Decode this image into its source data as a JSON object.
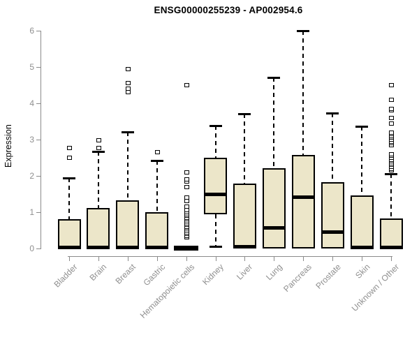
{
  "chart_data": {
    "type": "boxplot",
    "title": "ENSG00000255239 - AP002954.6",
    "ylabel": "Expression",
    "xlabel": "",
    "ylim": [
      0,
      6
    ],
    "y_ticks": [
      0,
      1,
      2,
      3,
      4,
      5,
      6
    ],
    "grid": false,
    "legend": false,
    "categories": [
      "Bladder",
      "Brain",
      "Breast",
      "Gastric",
      "Hematopoietic cells",
      "Kidney",
      "Liver",
      "Lung",
      "Pancreas",
      "Prostate",
      "Skin",
      "Unknown / Other"
    ],
    "series": [
      {
        "category": "Bladder",
        "whisker_low": 0,
        "q1": 0,
        "median": 0.03,
        "q3": 0.8,
        "whisker_high": 1.95,
        "outliers": [
          2.5,
          2.77
        ]
      },
      {
        "category": "Brain",
        "whisker_low": 0,
        "q1": 0,
        "median": 0.03,
        "q3": 1.12,
        "whisker_high": 2.67,
        "outliers": [
          2.77,
          2.98
        ]
      },
      {
        "category": "Breast",
        "whisker_low": 0,
        "q1": 0,
        "median": 0.03,
        "q3": 1.33,
        "whisker_high": 3.22,
        "outliers": [
          4.3,
          4.4,
          4.55,
          4.95
        ]
      },
      {
        "category": "Gastric",
        "whisker_low": 0,
        "q1": 0,
        "median": 0.03,
        "q3": 1.0,
        "whisker_high": 2.43,
        "outliers": [
          2.65
        ]
      },
      {
        "category": "Hematopoietic cells",
        "whisker_low": 0,
        "q1": 0,
        "median": 0.02,
        "q3": 0.02,
        "whisker_high": 0.02,
        "outliers": [
          0.3,
          0.35,
          0.4,
          0.45,
          0.5,
          0.55,
          0.6,
          0.65,
          0.7,
          0.75,
          0.8,
          0.85,
          0.9,
          0.95,
          1.0,
          1.05,
          1.15,
          1.3,
          1.4,
          1.7,
          1.85,
          1.9,
          2.1,
          4.5
        ]
      },
      {
        "category": "Kidney",
        "whisker_low": 0.05,
        "q1": 0.94,
        "median": 1.5,
        "q3": 2.5,
        "whisker_high": 3.38,
        "outliers": []
      },
      {
        "category": "Liver",
        "whisker_low": 0,
        "q1": 0,
        "median": 0.05,
        "q3": 1.79,
        "whisker_high": 3.72,
        "outliers": []
      },
      {
        "category": "Lung",
        "whisker_low": 0,
        "q1": 0,
        "median": 0.57,
        "q3": 2.21,
        "whisker_high": 4.72,
        "outliers": []
      },
      {
        "category": "Pancreas",
        "whisker_low": 0,
        "q1": 0,
        "median": 1.43,
        "q3": 2.57,
        "whisker_high": 6.0,
        "outliers": []
      },
      {
        "category": "Prostate",
        "whisker_low": 0,
        "q1": 0,
        "median": 0.46,
        "q3": 1.83,
        "whisker_high": 3.73,
        "outliers": []
      },
      {
        "category": "Skin",
        "whisker_low": 0,
        "q1": 0,
        "median": 0.04,
        "q3": 1.46,
        "whisker_high": 3.37,
        "outliers": []
      },
      {
        "category": "Unknown / Other",
        "whisker_low": 0,
        "q1": 0,
        "median": 0.03,
        "q3": 0.83,
        "whisker_high": 2.06,
        "outliers": [
          2.15,
          2.2,
          2.25,
          2.3,
          2.35,
          2.4,
          2.45,
          2.5,
          2.55,
          2.6,
          2.85,
          2.9,
          2.95,
          3.0,
          3.05,
          3.1,
          3.15,
          3.2,
          3.45,
          3.6,
          3.8,
          3.85,
          4.1,
          4.5
        ]
      }
    ],
    "colors": {
      "box_fill": "#ECE6C9",
      "box_border": "#000000",
      "median": "#000000",
      "whisker": "#000000",
      "axis": "#8a8a8a",
      "tick_label": "#8f8f8f",
      "title": "#000000",
      "background": "#ffffff"
    }
  }
}
